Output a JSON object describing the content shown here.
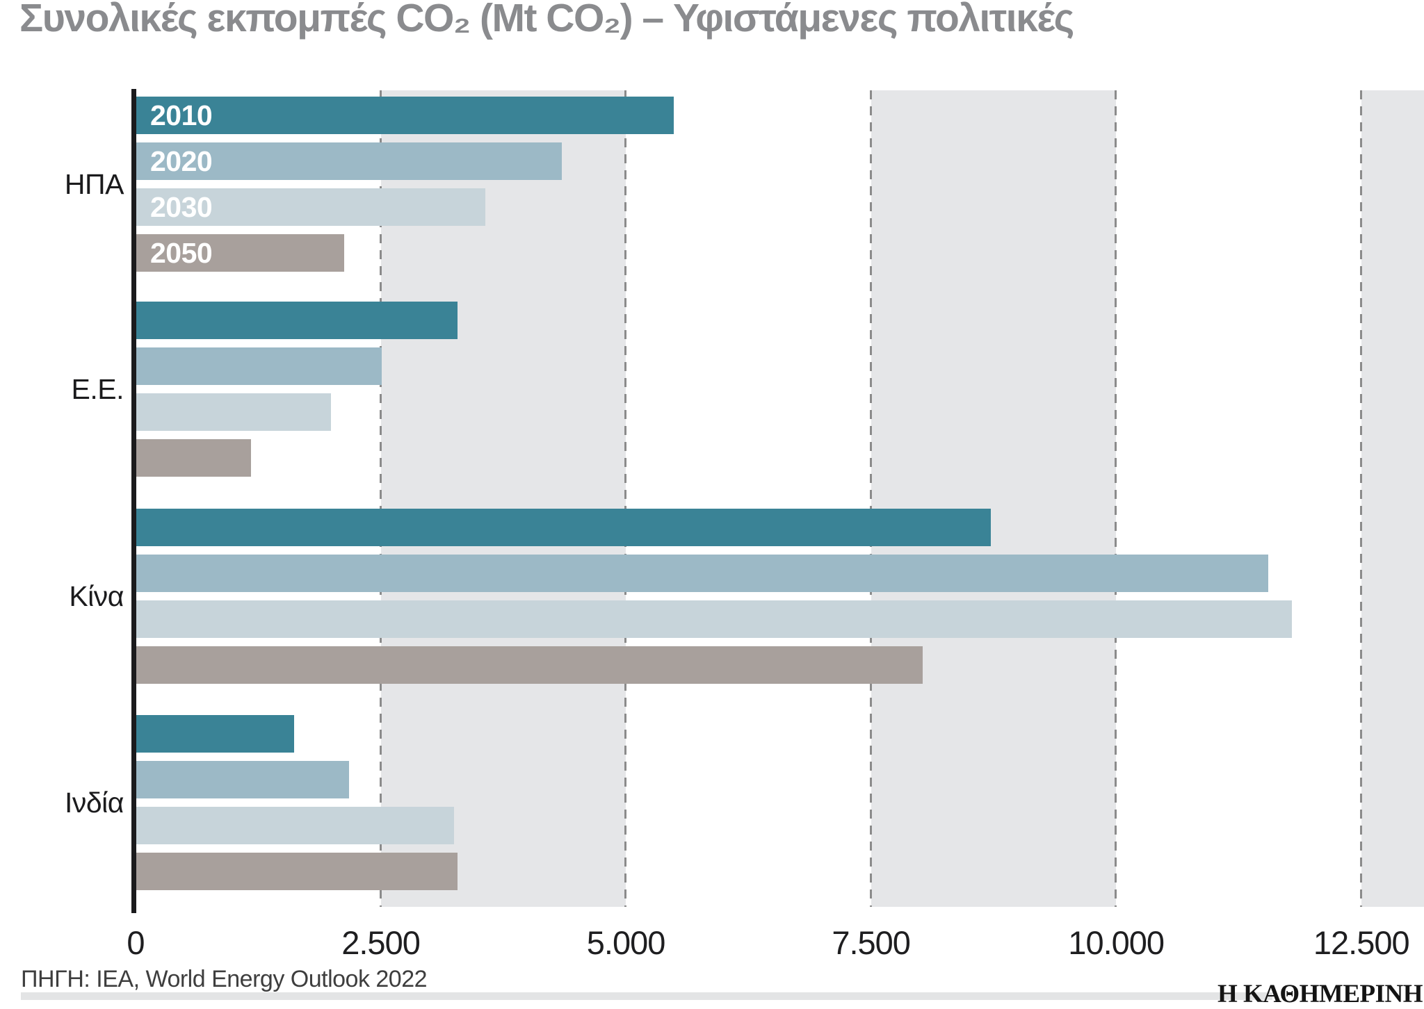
{
  "title": "Συνολικές εκπομπές CO₂ (Mt CO₂) – Υφιστάμενες πολιτικές",
  "source_note": "ΠΗΓΗ: IEA, World Energy Outlook 2022",
  "branding": {
    "logo_text": "Η ΚΑΘΗΜΕΡΙΝΗ"
  },
  "colors": {
    "band": "#e5e6e8",
    "gridline": "#8b8b8b",
    "axis_line": "#1b1b1d",
    "title_text": "#8a8b8e",
    "bar_label_text": "#ffffff"
  },
  "chart_data": {
    "type": "bar",
    "orientation": "horizontal",
    "title": "Συνολικές εκπομπές CO₂ (Mt CO₂) – Υφιστάμενες πολιτικές",
    "xlabel": "",
    "ylabel": "",
    "value_unit": "Mt CO₂",
    "categories": [
      "ΗΠΑ",
      "Ε.Ε.",
      "Κίνα",
      "Ινδία"
    ],
    "category_keys": [
      "usa",
      "eu",
      "china",
      "india"
    ],
    "series": [
      {
        "name": "2010",
        "color": "#3a8396",
        "values": [
          5490,
          3280,
          8720,
          1620
        ]
      },
      {
        "name": "2020",
        "color": "#9cb9c6",
        "values": [
          4350,
          2510,
          11550,
          2180
        ]
      },
      {
        "name": "2030",
        "color": "#c7d4da",
        "values": [
          3570,
          1990,
          11790,
          3250
        ]
      },
      {
        "name": "2050",
        "color": "#a8a09c",
        "values": [
          2130,
          1180,
          8030,
          3280
        ]
      }
    ],
    "x_ticks": [
      "0",
      "2.500",
      "5.000",
      "7.500",
      "10.000",
      "12.500"
    ],
    "x_tick_values": [
      0,
      2500,
      5000,
      7500,
      10000,
      12500
    ],
    "xlim": [
      0,
      13140
    ],
    "background_bands": [
      [
        2500,
        5000
      ],
      [
        7500,
        10000
      ],
      [
        12500,
        13140
      ]
    ],
    "grid": "dashed vertical at each tick",
    "legend_position": "series year labels inside first category's bars"
  }
}
